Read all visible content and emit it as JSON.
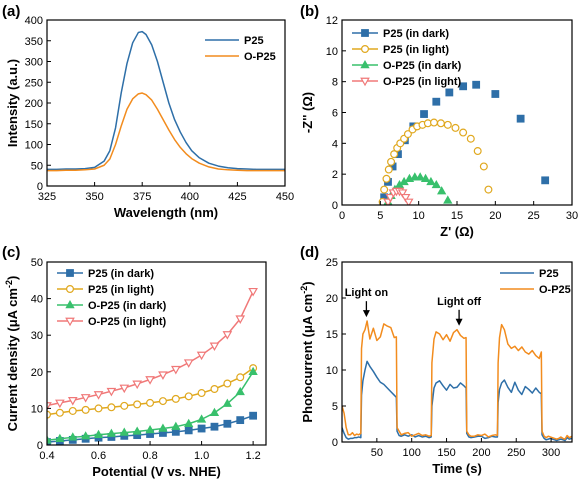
{
  "chart_data": [
    {
      "panel": "(a)",
      "type": "line",
      "xlabel": "Wavelength (nm)",
      "ylabel": "Intensity (a.u.)",
      "xlim": [
        325,
        450
      ],
      "ylim": [
        0,
        400
      ],
      "xticks": [
        325,
        350,
        375,
        400,
        425,
        450
      ],
      "yticks": [
        0,
        50,
        100,
        150,
        200,
        250,
        300,
        350,
        400
      ],
      "legend_position": "top-right",
      "series": [
        {
          "name": "P25",
          "color": "#2e6fa8",
          "x": [
            325,
            330,
            335,
            340,
            345,
            350,
            355,
            358,
            361,
            364,
            367,
            370,
            373,
            375,
            377,
            380,
            383,
            386,
            389,
            392,
            395,
            398,
            401,
            405,
            410,
            415,
            420,
            425,
            430,
            435,
            440,
            445,
            450
          ],
          "y": [
            40,
            40,
            41,
            41,
            42,
            45,
            60,
            85,
            140,
            225,
            295,
            345,
            370,
            372,
            365,
            340,
            300,
            250,
            200,
            160,
            130,
            105,
            85,
            68,
            55,
            48,
            44,
            42,
            41,
            40,
            40,
            40,
            40
          ]
        },
        {
          "name": "O-P25",
          "color": "#f28c1e",
          "x": [
            325,
            330,
            335,
            340,
            345,
            350,
            355,
            358,
            361,
            364,
            367,
            370,
            373,
            375,
            377,
            380,
            383,
            386,
            389,
            392,
            395,
            398,
            401,
            405,
            410,
            415,
            420,
            425,
            430,
            435,
            440,
            445,
            450
          ],
          "y": [
            37,
            37,
            38,
            38,
            39,
            41,
            50,
            65,
            100,
            145,
            185,
            210,
            222,
            224,
            220,
            207,
            185,
            160,
            135,
            112,
            93,
            78,
            66,
            55,
            46,
            41,
            39,
            38,
            37,
            37,
            37,
            37,
            37
          ]
        }
      ]
    },
    {
      "panel": "(b)",
      "type": "scatter",
      "xlabel": "Z' (Ω)",
      "ylabel": "-Z'' (Ω)",
      "xlim": [
        0,
        30
      ],
      "ylim": [
        0,
        12
      ],
      "xticks": [
        0,
        5,
        10,
        15,
        20,
        25,
        30
      ],
      "yticks": [
        0,
        2,
        4,
        6,
        8,
        10,
        12
      ],
      "legend_position": "top-left",
      "series": [
        {
          "name": "P25 (in dark)",
          "color": "#2e6fa8",
          "marker": "square-filled",
          "x": [
            5.5,
            6.0,
            6.6,
            7.3,
            8.2,
            9.3,
            10.7,
            12.3,
            14.0,
            15.8,
            17.5,
            20.0,
            23.3,
            26.5
          ],
          "y": [
            0.5,
            1.5,
            2.5,
            3.3,
            4.2,
            5.1,
            5.9,
            6.7,
            7.3,
            7.7,
            7.8,
            7.2,
            5.6,
            1.6
          ]
        },
        {
          "name": "P25 (in light)",
          "color": "#e0a81e",
          "marker": "circle-open",
          "x": [
            5.3,
            5.5,
            5.8,
            6.1,
            6.4,
            6.8,
            7.2,
            7.6,
            8.1,
            8.6,
            9.2,
            9.8,
            10.5,
            11.2,
            12.0,
            12.9,
            13.8,
            14.8,
            15.8,
            16.8,
            17.7,
            18.5,
            19.1
          ],
          "y": [
            0.2,
            1.0,
            1.7,
            2.3,
            2.8,
            3.3,
            3.7,
            4.0,
            4.3,
            4.6,
            4.9,
            5.1,
            5.2,
            5.3,
            5.35,
            5.3,
            5.2,
            5.0,
            4.7,
            4.3,
            3.5,
            2.5,
            1.0
          ]
        },
        {
          "name": "O-P25 (in dark)",
          "color": "#38c06c",
          "marker": "triangle-up-filled",
          "x": [
            6.0,
            6.4,
            6.9,
            7.5,
            8.1,
            8.8,
            9.5,
            10.2,
            10.9,
            11.6,
            12.3,
            13.0,
            13.8
          ],
          "y": [
            0.2,
            0.6,
            1.0,
            1.3,
            1.5,
            1.7,
            1.8,
            1.8,
            1.7,
            1.5,
            1.3,
            0.9,
            0.3
          ]
        },
        {
          "name": "O-P25 (in light)",
          "color": "#f07878",
          "marker": "triangle-down-open",
          "x": [
            6.0,
            6.3,
            6.7,
            7.1,
            7.5,
            7.9,
            8.3,
            8.7
          ],
          "y": [
            0.2,
            0.5,
            0.8,
            0.9,
            0.9,
            0.8,
            0.5,
            0.2
          ]
        }
      ]
    },
    {
      "panel": "(c)",
      "type": "line",
      "xlabel": "Potential (V vs. NHE)",
      "ylabel": "Current density (μA cm",
      "ylabel_sup": "-2",
      "ylabel_end": ")",
      "xlim": [
        0.4,
        1.25
      ],
      "ylim": [
        0,
        50
      ],
      "xticks": [
        0.4,
        0.6,
        0.8,
        1.0,
        1.2
      ],
      "xtick_labels": [
        "0.4",
        "0.6",
        "0.8",
        "1.0",
        "1.2"
      ],
      "yticks": [
        0,
        10,
        20,
        30,
        40,
        50
      ],
      "legend_position": "top-left",
      "series": [
        {
          "name": "P25 (in dark)",
          "color": "#2e6fa8",
          "marker": "square-filled",
          "x": [
            0.4,
            0.45,
            0.5,
            0.55,
            0.6,
            0.65,
            0.7,
            0.75,
            0.8,
            0.85,
            0.9,
            0.95,
            1.0,
            1.05,
            1.1,
            1.15,
            1.2
          ],
          "y": [
            0.8,
            1.1,
            1.4,
            1.7,
            2.0,
            2.2,
            2.5,
            2.7,
            3.0,
            3.3,
            3.6,
            4.0,
            4.5,
            5.0,
            5.8,
            6.8,
            8.0
          ]
        },
        {
          "name": "P25 (in light)",
          "color": "#e0a81e",
          "marker": "circle-open",
          "x": [
            0.4,
            0.45,
            0.5,
            0.55,
            0.6,
            0.65,
            0.7,
            0.75,
            0.8,
            0.85,
            0.9,
            0.95,
            1.0,
            1.05,
            1.1,
            1.15,
            1.2
          ],
          "y": [
            8.3,
            8.8,
            9.3,
            9.6,
            10.0,
            10.3,
            10.7,
            11.1,
            11.5,
            12.0,
            12.6,
            13.3,
            14.2,
            15.3,
            16.8,
            18.5,
            21.0
          ]
        },
        {
          "name": "O-P25 (in dark)",
          "color": "#38c06c",
          "marker": "triangle-up-filled",
          "x": [
            0.4,
            0.45,
            0.5,
            0.55,
            0.6,
            0.65,
            0.7,
            0.75,
            0.8,
            0.85,
            0.9,
            0.95,
            1.0,
            1.05,
            1.1,
            1.15,
            1.2
          ],
          "y": [
            1.3,
            1.7,
            2.1,
            2.4,
            2.8,
            3.1,
            3.4,
            3.7,
            4.1,
            4.5,
            5.0,
            5.8,
            7.0,
            8.8,
            11.3,
            14.5,
            20.0
          ]
        },
        {
          "name": "O-P25 (in light)",
          "color": "#f07878",
          "marker": "triangle-down-open",
          "x": [
            0.4,
            0.45,
            0.5,
            0.55,
            0.6,
            0.65,
            0.7,
            0.75,
            0.8,
            0.85,
            0.9,
            0.95,
            1.0,
            1.05,
            1.1,
            1.15,
            1.2
          ],
          "y": [
            10.8,
            11.5,
            12.2,
            13.0,
            13.8,
            14.7,
            15.6,
            16.7,
            17.9,
            19.2,
            20.7,
            22.5,
            24.6,
            27.1,
            30.2,
            34.5,
            42.0
          ]
        }
      ]
    },
    {
      "panel": "(d)",
      "type": "line",
      "xlabel": "Time (s)",
      "ylabel": "Photocurrent (μA cm",
      "ylabel_sup": "-2",
      "ylabel_end": ")",
      "xlim": [
        0,
        330
      ],
      "ylim": [
        0,
        25
      ],
      "xticks": [
        50,
        100,
        150,
        200,
        250,
        300
      ],
      "yticks": [
        0,
        5,
        10,
        15,
        20,
        25
      ],
      "legend_position": "top-right",
      "annotations": [
        {
          "text": "Light on",
          "x": 35,
          "y": 17.2
        },
        {
          "text": "Light off",
          "x": 168,
          "y": 16.0
        }
      ],
      "series": [
        {
          "name": "P25",
          "color": "#2e6fa8",
          "x": [
            0,
            3,
            6,
            9,
            12,
            15,
            18,
            21,
            24,
            27,
            28,
            30,
            33,
            36,
            40,
            45,
            50,
            55,
            60,
            65,
            70,
            75,
            78,
            79,
            82,
            85,
            90,
            95,
            100,
            105,
            110,
            115,
            120,
            125,
            128,
            129,
            132,
            135,
            140,
            145,
            150,
            155,
            160,
            165,
            170,
            175,
            178,
            179,
            182,
            185,
            190,
            195,
            200,
            205,
            210,
            215,
            220,
            223,
            224,
            226,
            229,
            233,
            238,
            243,
            248,
            253,
            258,
            263,
            268,
            273,
            278,
            283,
            286,
            287,
            290,
            293,
            296,
            299,
            302,
            305,
            308,
            311,
            314,
            317,
            320,
            323,
            326,
            330
          ],
          "y": [
            2.0,
            1.2,
            0.6,
            0.4,
            0.5,
            0.5,
            0.6,
            0.6,
            0.7,
            0.6,
            6.5,
            8.5,
            10.0,
            11.2,
            10.5,
            9.8,
            9.0,
            8.3,
            8.0,
            7.5,
            7.0,
            6.5,
            6.2,
            1.5,
            0.9,
            0.8,
            1.0,
            0.8,
            1.0,
            0.7,
            0.9,
            0.7,
            0.8,
            0.6,
            0.7,
            5.0,
            7.5,
            8.2,
            8.5,
            7.8,
            7.2,
            8.0,
            7.5,
            7.6,
            8.2,
            7.8,
            7.5,
            1.2,
            0.7,
            0.6,
            0.7,
            0.8,
            0.8,
            0.5,
            0.6,
            0.8,
            0.7,
            0.7,
            5.5,
            7.3,
            8.2,
            8.6,
            7.6,
            6.9,
            8.3,
            7.2,
            6.6,
            7.7,
            7.3,
            6.8,
            7.5,
            6.9,
            6.7,
            1.0,
            0.5,
            0.3,
            0.4,
            0.5,
            0.4,
            0.3,
            0.2,
            0.3,
            0.4,
            0.3,
            0.2,
            0.6,
            0.4,
            0.5
          ]
        },
        {
          "name": "O-P25",
          "color": "#f28c1e",
          "x": [
            0,
            3,
            6,
            9,
            12,
            15,
            18,
            21,
            24,
            27,
            28,
            30,
            33,
            36,
            40,
            45,
            50,
            55,
            60,
            65,
            70,
            75,
            78,
            79,
            82,
            85,
            90,
            95,
            100,
            105,
            110,
            115,
            120,
            125,
            128,
            129,
            132,
            135,
            140,
            145,
            150,
            155,
            160,
            165,
            170,
            175,
            178,
            179,
            182,
            185,
            190,
            195,
            200,
            205,
            210,
            215,
            220,
            223,
            224,
            226,
            229,
            233,
            238,
            243,
            248,
            253,
            258,
            263,
            268,
            273,
            278,
            283,
            286,
            287,
            290,
            293,
            296,
            299,
            302,
            305,
            308,
            311,
            314,
            317,
            320,
            323,
            326,
            330
          ],
          "y": [
            5.0,
            4.0,
            2.0,
            1.0,
            1.0,
            1.3,
            0.9,
            1.1,
            1.0,
            1.2,
            13.0,
            15.0,
            15.6,
            16.8,
            14.3,
            15.8,
            14.1,
            14.6,
            16.4,
            16.1,
            15.9,
            14.5,
            14.6,
            2.0,
            1.5,
            1.0,
            1.2,
            1.3,
            0.8,
            1.0,
            1.2,
            0.9,
            1.0,
            0.8,
            0.9,
            11.0,
            14.3,
            15.3,
            15.0,
            14.2,
            14.9,
            14.0,
            15.2,
            15.6,
            14.8,
            14.4,
            14.5,
            1.5,
            1.0,
            0.8,
            0.8,
            1.0,
            0.9,
            1.1,
            0.7,
            0.9,
            1.0,
            0.9,
            11.0,
            14.5,
            16.3,
            15.6,
            13.6,
            13.0,
            13.3,
            12.7,
            13.2,
            12.5,
            12.2,
            12.7,
            12.0,
            11.6,
            12.5,
            1.5,
            0.8,
            0.6,
            0.8,
            0.7,
            0.6,
            0.5,
            0.4,
            0.5,
            0.7,
            0.5,
            0.4,
            0.9,
            0.6,
            0.8
          ]
        }
      ]
    }
  ]
}
